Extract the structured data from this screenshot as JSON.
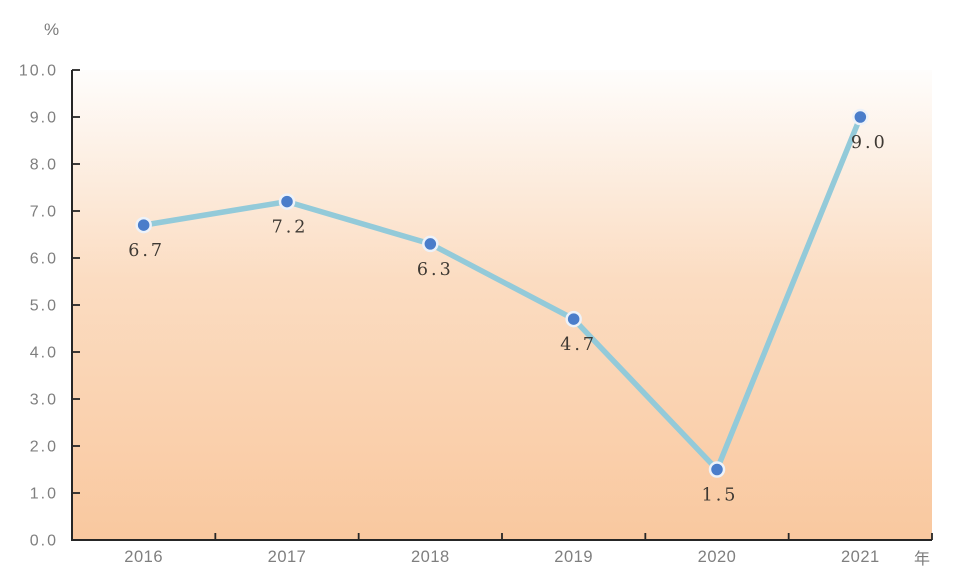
{
  "chart_data": {
    "type": "line",
    "title": "",
    "categories": [
      "2016",
      "2017",
      "2018",
      "2019",
      "2020",
      "2021"
    ],
    "values": [
      6.7,
      7.2,
      6.3,
      4.7,
      1.5,
      9.0
    ],
    "point_labels": [
      "6.7",
      "7.2",
      "6.3",
      "4.7",
      "1.5",
      "9.0"
    ],
    "ylabel": "%",
    "xlabel": "年",
    "ylim": [
      0,
      10
    ],
    "ytick_step": 1.0,
    "yticks": [
      "0.0",
      "1.0",
      "2.0",
      "3.0",
      "4.0",
      "5.0",
      "6.0",
      "7.0",
      "8.0",
      "9.0",
      "10.0"
    ],
    "grid": false,
    "legend": "none"
  },
  "colors": {
    "background": "#ffffff",
    "plot_gradient_top": "#fefdfc",
    "plot_gradient_mid": "#fbdcc1",
    "plot_gradient_bottom": "#f9c89f",
    "line": "#93cad9",
    "marker": "#4a7dca",
    "marker_ring": "#edf2f9",
    "axis": "#262626",
    "tick_label": "#7f7f7f",
    "data_label": "#3e3933"
  }
}
